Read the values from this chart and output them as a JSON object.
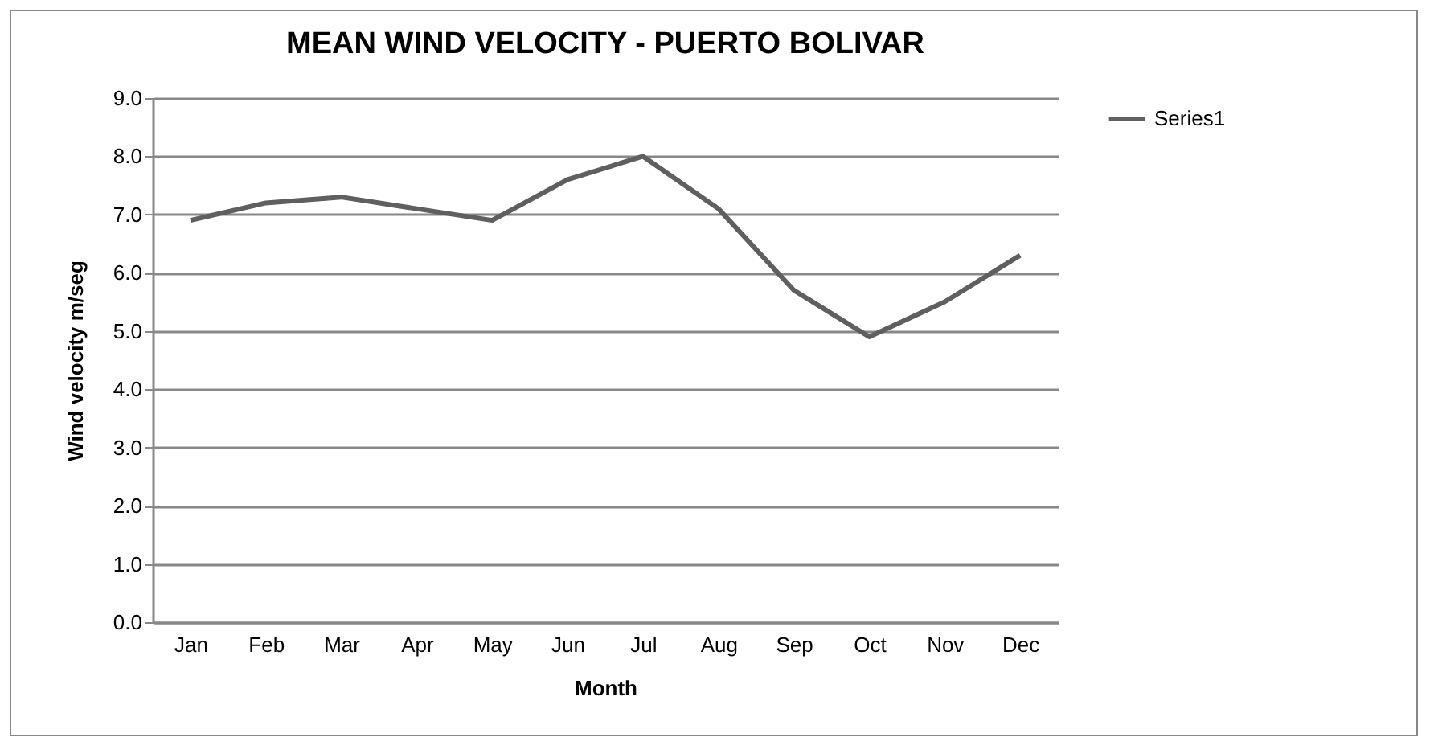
{
  "chart_data": {
    "type": "line",
    "title": "MEAN WIND VELOCITY - PUERTO BOLIVAR",
    "xlabel": "Month",
    "ylabel": "Wind velocity m/seg",
    "categories": [
      "Jan",
      "Feb",
      "Mar",
      "Apr",
      "May",
      "Jun",
      "Jul",
      "Aug",
      "Sep",
      "Oct",
      "Nov",
      "Dec"
    ],
    "series": [
      {
        "name": "Series1",
        "color": "#5f5f5f",
        "values": [
          6.9,
          7.2,
          7.3,
          7.1,
          6.9,
          7.6,
          8.0,
          7.1,
          5.7,
          4.9,
          5.5,
          6.3
        ]
      }
    ],
    "ylim": [
      0,
      9
    ],
    "yticks": [
      {
        "value": 0,
        "label": "0.0"
      },
      {
        "value": 1,
        "label": "1.0"
      },
      {
        "value": 2,
        "label": "2.0"
      },
      {
        "value": 3,
        "label": "3.0"
      },
      {
        "value": 4,
        "label": "4.0"
      },
      {
        "value": 5,
        "label": "5.0"
      },
      {
        "value": 6,
        "label": "6.0"
      },
      {
        "value": 7,
        "label": "7.0"
      },
      {
        "value": 8,
        "label": "8.0"
      },
      {
        "value": 9,
        "label": "9.0"
      }
    ],
    "grid": "y",
    "legend": "right",
    "marker": "none",
    "line_style": "solid"
  }
}
